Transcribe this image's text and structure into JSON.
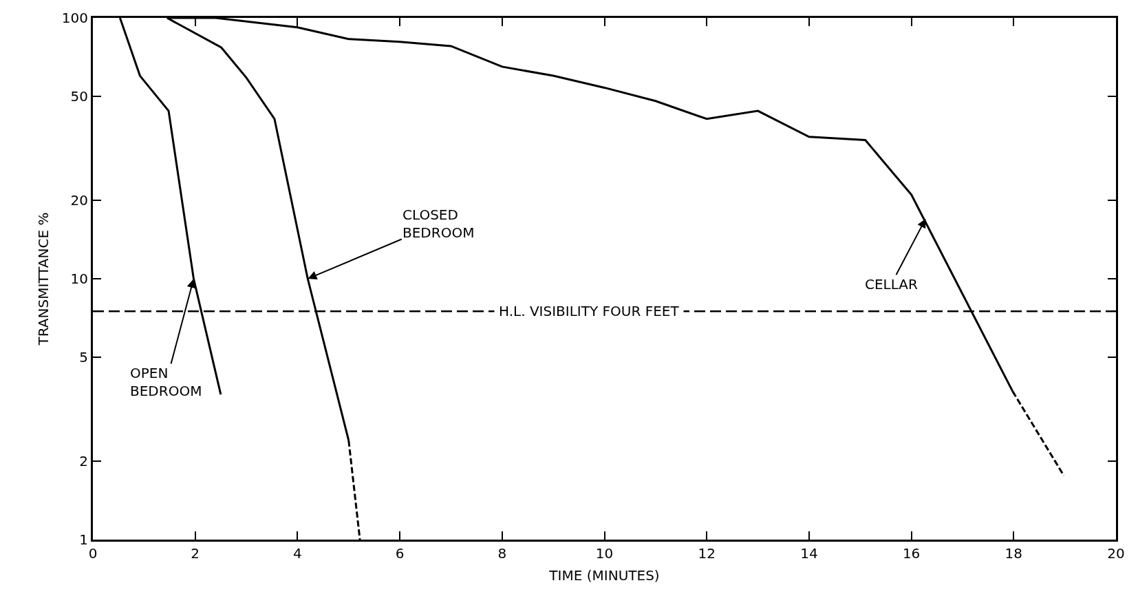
{
  "chart_data": {
    "type": "line",
    "xlabel": "TIME (MINUTES)",
    "ylabel": "TRANSMITTANCE %",
    "log": "y",
    "grid": false,
    "marker": "none",
    "line_style": "solid",
    "xlim": [
      0,
      20
    ],
    "xticks": [
      0,
      2,
      4,
      6,
      8,
      10,
      12,
      14,
      16,
      18,
      20
    ],
    "ylim": [
      1,
      100
    ],
    "yticks": [
      1,
      2,
      5,
      10,
      20,
      50,
      100
    ],
    "series": [
      {
        "color": "#000000",
        "x": [
          0.53,
          0.92,
          1.48,
          1.97,
          2.5
        ],
        "values": [
          100,
          60,
          44,
          10,
          3.6
        ]
      },
      {
        "color": "#000000",
        "x": [
          1.45,
          2.51,
          3.0,
          3.55,
          4.2,
          5.0
        ],
        "values": [
          100,
          77,
          59,
          41,
          10,
          2.4
        ]
      },
      {
        "color": "#000000",
        "line_style": "dashed",
        "x": [
          5.0,
          5.22
        ],
        "values": [
          2.4,
          1
        ]
      },
      {
        "color": "#000000",
        "x": [
          1.45,
          2.4,
          4.0,
          5.0,
          6.0,
          7.0,
          8.0,
          9.0,
          10.0,
          11.0,
          12.0,
          13.0,
          14.0,
          15.1,
          16.0,
          17.98
        ],
        "values": [
          100,
          100,
          92,
          83,
          81,
          78,
          65,
          60,
          54,
          48,
          41,
          44,
          35,
          34,
          21,
          3.7
        ]
      },
      {
        "color": "#000000",
        "line_style": "dashed",
        "x": [
          17.98,
          18.98
        ],
        "values": [
          3.7,
          1.76
        ]
      }
    ],
    "ref_lines": [
      {
        "axis": "y",
        "value": 7.5,
        "label": "H.L. VISIBILITY FOUR FEET",
        "line_style": "dashed",
        "color": "#000000"
      }
    ],
    "annotations": [
      {
        "text": "OPEN\nBEDROOM",
        "x": 1.97,
        "y": 10
      },
      {
        "text": "CLOSED\nBEDROOM",
        "x": 4.2,
        "y": 10
      },
      {
        "text": "CELLAR",
        "x": 16.28,
        "y": 17
      }
    ]
  }
}
